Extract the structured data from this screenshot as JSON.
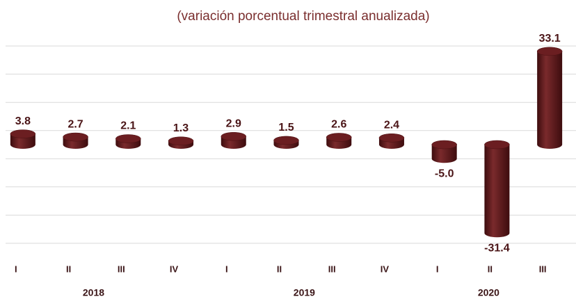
{
  "chart_data": {
    "type": "bar",
    "title": "(variación porcentual trimestral anualizada)",
    "category_groups": [
      {
        "name": "2018",
        "categories": [
          "I",
          "II",
          "III",
          "IV"
        ]
      },
      {
        "name": "2019",
        "categories": [
          "I",
          "II",
          "III",
          "IV"
        ]
      },
      {
        "name": "2020",
        "categories": [
          "I",
          "II",
          "III"
        ]
      }
    ],
    "values": [
      3.8,
      2.7,
      2.1,
      1.3,
      2.9,
      1.5,
      2.6,
      2.4,
      -5.0,
      -31.4,
      33.1
    ],
    "value_labels": [
      "3.8",
      "2.7",
      "2.1",
      "1.3",
      "2.9",
      "1.5",
      "2.6",
      "2.4",
      "-5.0",
      "-31.4",
      "33.1"
    ],
    "color": "#5e1719",
    "ylim": [
      -38,
      38
    ],
    "yticks": [
      -35,
      -25,
      -15,
      -5,
      5,
      15,
      25,
      35
    ],
    "grid": true
  }
}
